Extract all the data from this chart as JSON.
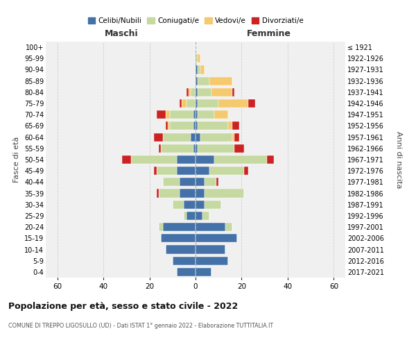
{
  "age_groups": [
    "0-4",
    "5-9",
    "10-14",
    "15-19",
    "20-24",
    "25-29",
    "30-34",
    "35-39",
    "40-44",
    "45-49",
    "50-54",
    "55-59",
    "60-64",
    "65-69",
    "70-74",
    "75-79",
    "80-84",
    "85-89",
    "90-94",
    "95-99",
    "100+"
  ],
  "birth_years": [
    "2017-2021",
    "2012-2016",
    "2007-2011",
    "2002-2006",
    "1997-2001",
    "1992-1996",
    "1987-1991",
    "1982-1986",
    "1977-1981",
    "1972-1976",
    "1967-1971",
    "1962-1966",
    "1957-1961",
    "1952-1956",
    "1947-1951",
    "1942-1946",
    "1937-1941",
    "1932-1936",
    "1927-1931",
    "1922-1926",
    "≤ 1921"
  ],
  "male": {
    "celibi": [
      8,
      10,
      13,
      15,
      14,
      4,
      5,
      7,
      7,
      8,
      8,
      1,
      2,
      1,
      1,
      0,
      0,
      0,
      0,
      0,
      0
    ],
    "coniugati": [
      0,
      0,
      0,
      0,
      2,
      1,
      5,
      9,
      7,
      9,
      20,
      14,
      12,
      10,
      10,
      4,
      2,
      0,
      0,
      0,
      0
    ],
    "vedovi": [
      0,
      0,
      0,
      0,
      0,
      0,
      0,
      0,
      0,
      0,
      0,
      0,
      0,
      1,
      2,
      2,
      1,
      0,
      0,
      0,
      0
    ],
    "divorziati": [
      0,
      0,
      0,
      0,
      0,
      0,
      0,
      1,
      0,
      1,
      4,
      1,
      4,
      1,
      4,
      1,
      1,
      0,
      0,
      0,
      0
    ]
  },
  "female": {
    "nubili": [
      7,
      14,
      13,
      18,
      13,
      3,
      4,
      4,
      4,
      6,
      8,
      1,
      2,
      1,
      1,
      1,
      1,
      1,
      1,
      0,
      0
    ],
    "coniugate": [
      0,
      0,
      0,
      0,
      3,
      3,
      7,
      17,
      5,
      15,
      23,
      16,
      14,
      13,
      7,
      9,
      6,
      5,
      1,
      1,
      0
    ],
    "vedove": [
      0,
      0,
      0,
      0,
      0,
      0,
      0,
      0,
      0,
      0,
      0,
      0,
      1,
      2,
      6,
      13,
      9,
      10,
      2,
      1,
      0
    ],
    "divorziate": [
      0,
      0,
      0,
      0,
      0,
      0,
      0,
      0,
      1,
      2,
      3,
      4,
      2,
      3,
      0,
      3,
      1,
      0,
      0,
      0,
      0
    ]
  },
  "colors": {
    "celibi": "#4472a8",
    "coniugati": "#c5d9a0",
    "vedovi": "#f5c96e",
    "divorziati": "#cc2222"
  },
  "title": "Popolazione per età, sesso e stato civile - 2022",
  "subtitle": "COMUNE DI TREPPO LIGOSULLO (UD) - Dati ISTAT 1° gennaio 2022 - Elaborazione TUTTITALIA.IT",
  "xlabel_left": "Maschi",
  "xlabel_right": "Femmine",
  "ylabel_left": "Fasce di età",
  "ylabel_right": "Anni di nascita",
  "xlim": 65,
  "bg_color": "#ffffff",
  "plot_bg": "#f0f0f0",
  "grid_color": "#cccccc"
}
